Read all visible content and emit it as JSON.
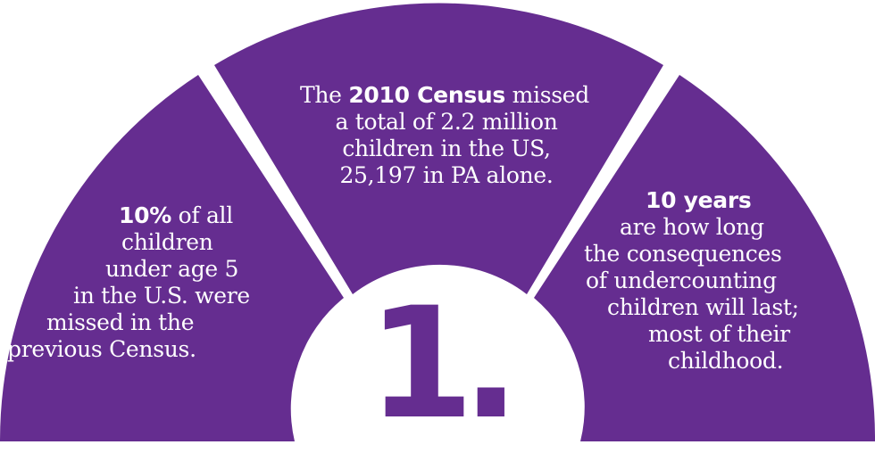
{
  "colors": {
    "segment": "#652d90",
    "center_circle": "#ffffff",
    "number": "#652d90"
  },
  "number": "1.",
  "segments": {
    "center": {
      "line1_pre": "The ",
      "line1_bold": "2010 Census",
      "line1_post": " missed",
      "line2": "a total of 2.2 million",
      "line3": "children in the US,",
      "line4": "25,197 in PA alone."
    },
    "left": {
      "line1_bold": "10%",
      "line1_post": " of all",
      "line2": "children",
      "line3": "under age 5",
      "line4": "in the U.S. were",
      "line5": "missed in the",
      "line6": "previous Census."
    },
    "right": {
      "line1_bold": "10 years",
      "line2": "are how long",
      "line3": "the consequences",
      "line4": "of undercounting",
      "line5": "children will last;",
      "line6": "most of their",
      "line7": "childhood."
    }
  }
}
